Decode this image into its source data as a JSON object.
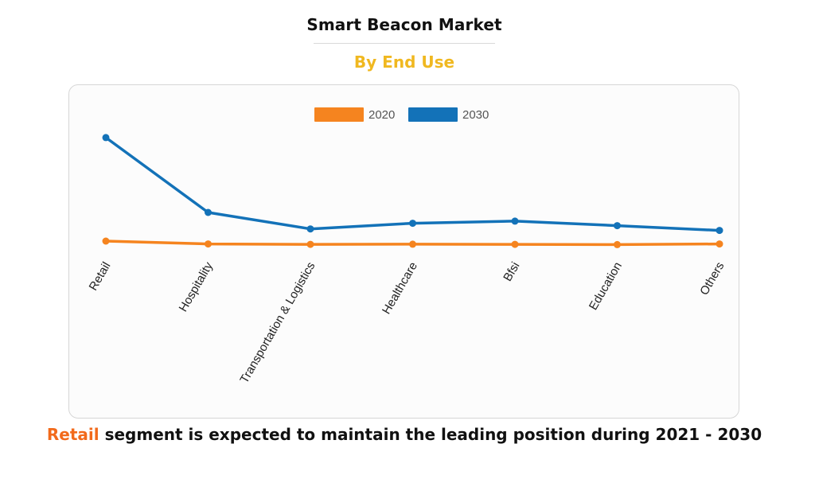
{
  "header": {
    "title": "Smart Beacon Market",
    "subtitle": "By End Use"
  },
  "footer": {
    "highlight": "Retail",
    "text": " segment is expected to maintain the leading position during 2021 - 2030"
  },
  "colors": {
    "series_2020": "#f5841f",
    "series_2030": "#1372b8",
    "subtitle": "#f0b820",
    "highlight": "#f26a1b"
  },
  "chart_data": {
    "type": "line",
    "categories": [
      "Retail",
      "Hospitality",
      "Transportation & Logistics",
      "Healthcare",
      "Bfsi",
      "Education",
      "Others"
    ],
    "series": [
      {
        "name": "2020",
        "values": [
          8.4,
          7.1,
          6.9,
          7.0,
          6.9,
          6.8,
          7.1
        ]
      },
      {
        "name": "2030",
        "values": [
          56.0,
          21.6,
          14.0,
          16.6,
          17.6,
          15.5,
          13.3
        ]
      }
    ],
    "ylim": [
      0,
      60
    ],
    "grid": false,
    "legend": "top-center",
    "x_tick_rotation": -60
  }
}
